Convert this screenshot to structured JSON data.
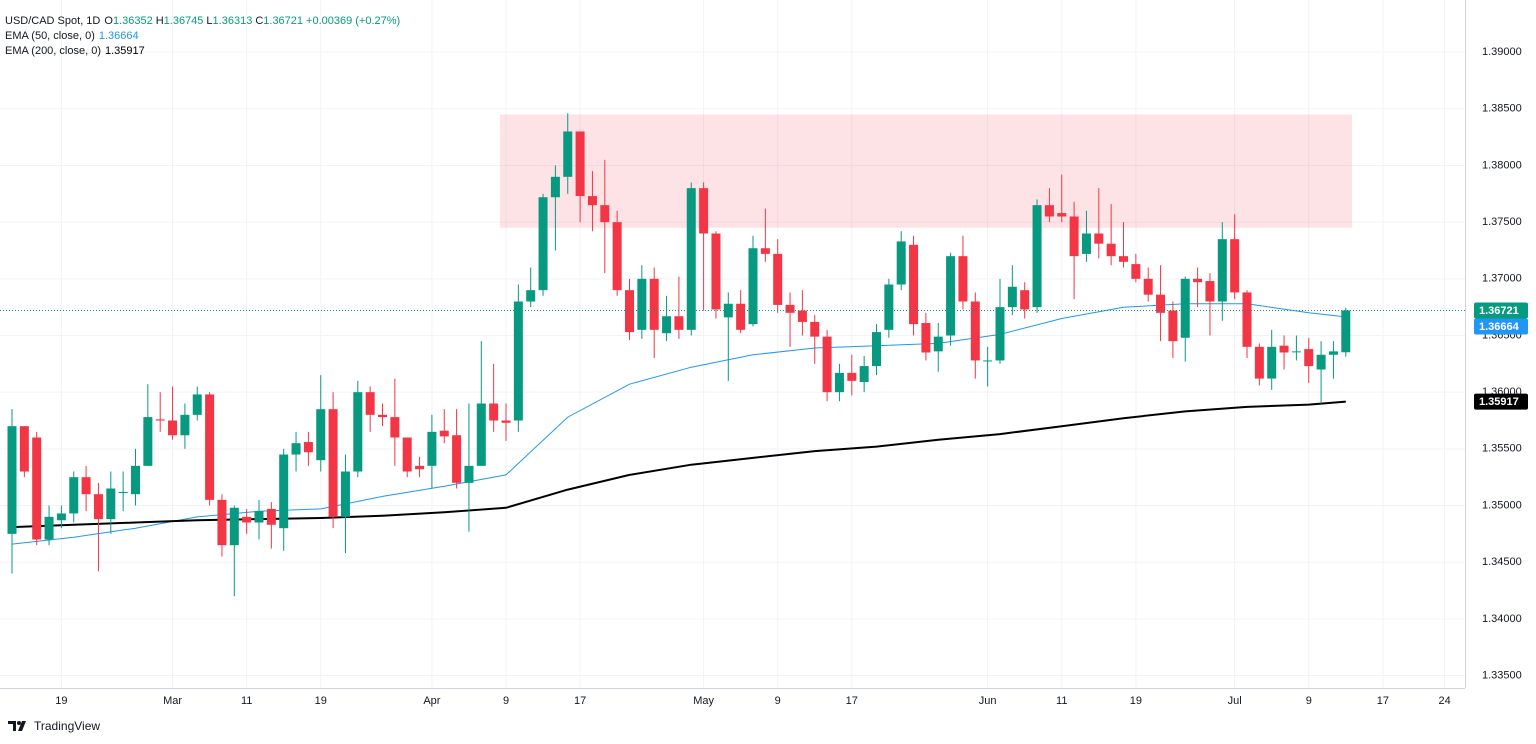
{
  "title": "USD/CAD Spot, 1D",
  "ohlc_prefixes": [
    "O",
    "H",
    "L",
    "C"
  ],
  "change": "+0.00369 (+0.27%)",
  "brand": "TradingView",
  "chart_data": {
    "type": "candlestick",
    "categories": [
      null,
      null,
      null,
      null,
      "19",
      null,
      null,
      null,
      null,
      null,
      null,
      null,
      null,
      "Mar",
      null,
      null,
      null,
      null,
      null,
      "11",
      null,
      null,
      null,
      null,
      null,
      "19",
      null,
      null,
      null,
      null,
      null,
      null,
      null,
      null,
      "Apr",
      null,
      null,
      null,
      null,
      null,
      "9",
      null,
      null,
      null,
      null,
      null,
      "17",
      null,
      null,
      null,
      null,
      null,
      null,
      null,
      null,
      null,
      "May",
      null,
      null,
      null,
      null,
      null,
      "9",
      null,
      null,
      null,
      null,
      null,
      "17",
      null,
      null,
      null,
      null,
      null,
      null,
      null,
      null,
      null,
      null,
      "Jun",
      null,
      null,
      null,
      null,
      null,
      "11",
      null,
      null,
      null,
      null,
      null,
      "19",
      null,
      null,
      null,
      null,
      null,
      null,
      null,
      "Jul",
      null,
      null,
      null,
      null,
      null,
      "9",
      null,
      null,
      null,
      null,
      null,
      "17",
      null,
      null,
      null,
      null,
      "24"
    ],
    "ohlc": [
      [
        1.3475,
        1.3585,
        1.344,
        1.357
      ],
      [
        1.357,
        1.357,
        1.3525,
        1.353
      ],
      [
        1.356,
        1.3565,
        1.3465,
        1.347
      ],
      [
        1.347,
        1.35,
        1.3465,
        1.349
      ],
      [
        1.3487,
        1.35,
        1.348,
        1.3493
      ],
      [
        1.3493,
        1.353,
        1.3485,
        1.3525
      ],
      [
        1.3525,
        1.3535,
        1.3495,
        1.351
      ],
      [
        1.351,
        1.352,
        1.3442,
        1.3488
      ],
      [
        1.3488,
        1.353,
        1.3475,
        1.3515
      ],
      [
        1.3511,
        1.353,
        1.3495,
        1.3512
      ],
      [
        1.351,
        1.355,
        1.35,
        1.3535
      ],
      [
        1.3535,
        1.3607,
        1.3535,
        1.3578
      ],
      [
        1.3576,
        1.36,
        1.3565,
        1.3575
      ],
      [
        1.3575,
        1.3605,
        1.3558,
        1.3562
      ],
      [
        1.3562,
        1.359,
        1.355,
        1.358
      ],
      [
        1.358,
        1.3605,
        1.3575,
        1.3598
      ],
      [
        1.3598,
        1.36,
        1.35,
        1.3505
      ],
      [
        1.3505,
        1.351,
        1.3455,
        1.3465
      ],
      [
        1.3465,
        1.35,
        1.342,
        1.3498
      ],
      [
        1.349,
        1.3497,
        1.3475,
        1.3485
      ],
      [
        1.3485,
        1.3505,
        1.347,
        1.3495
      ],
      [
        1.3497,
        1.3503,
        1.3462,
        1.3483
      ],
      [
        1.348,
        1.355,
        1.346,
        1.3545
      ],
      [
        1.3545,
        1.3565,
        1.353,
        1.3555
      ],
      [
        1.3556,
        1.3565,
        1.3535,
        1.3547
      ],
      [
        1.354,
        1.3615,
        1.353,
        1.3585
      ],
      [
        1.3585,
        1.36,
        1.348,
        1.349
      ],
      [
        1.349,
        1.3545,
        1.3458,
        1.353
      ],
      [
        1.353,
        1.361,
        1.3525,
        1.36
      ],
      [
        1.36,
        1.3605,
        1.3565,
        1.358
      ],
      [
        1.358,
        1.359,
        1.357,
        1.3578
      ],
      [
        1.3578,
        1.3612,
        1.3535,
        1.356
      ],
      [
        1.356,
        1.356,
        1.3525,
        1.353
      ],
      [
        1.3535,
        1.3543,
        1.3525,
        1.3532
      ],
      [
        1.3535,
        1.358,
        1.3515,
        1.3565
      ],
      [
        1.3566,
        1.3585,
        1.3555,
        1.3561
      ],
      [
        1.3562,
        1.3585,
        1.3515,
        1.352
      ],
      [
        1.352,
        1.359,
        1.3477,
        1.3535
      ],
      [
        1.3535,
        1.3645,
        1.3535,
        1.359
      ],
      [
        1.359,
        1.3625,
        1.3565,
        1.3575
      ],
      [
        1.3575,
        1.359,
        1.3557,
        1.3573
      ],
      [
        1.3575,
        1.3695,
        1.3565,
        1.368
      ],
      [
        1.368,
        1.371,
        1.3675,
        1.369
      ],
      [
        1.369,
        1.3775,
        1.3685,
        1.3772
      ],
      [
        1.3772,
        1.38,
        1.3725,
        1.379
      ],
      [
        1.379,
        1.3846,
        1.3775,
        1.383
      ],
      [
        1.383,
        1.383,
        1.375,
        1.3773
      ],
      [
        1.3773,
        1.3795,
        1.3742,
        1.3765
      ],
      [
        1.3765,
        1.3805,
        1.3705,
        1.375
      ],
      [
        1.375,
        1.376,
        1.3685,
        1.369
      ],
      [
        1.369,
        1.37,
        1.3646,
        1.3653
      ],
      [
        1.3655,
        1.3712,
        1.3647,
        1.37
      ],
      [
        1.37,
        1.371,
        1.363,
        1.3655
      ],
      [
        1.3652,
        1.3685,
        1.3645,
        1.3667
      ],
      [
        1.3667,
        1.3702,
        1.3647,
        1.3655
      ],
      [
        1.3655,
        1.3785,
        1.365,
        1.378
      ],
      [
        1.378,
        1.3785,
        1.3672,
        1.374
      ],
      [
        1.374,
        1.3742,
        1.3665,
        1.3673
      ],
      [
        1.3666,
        1.3688,
        1.361,
        1.3678
      ],
      [
        1.3678,
        1.369,
        1.3652,
        1.3655
      ],
      [
        1.366,
        1.3738,
        1.3658,
        1.3727
      ],
      [
        1.3727,
        1.3762,
        1.3715,
        1.3722
      ],
      [
        1.3722,
        1.3735,
        1.367,
        1.3677
      ],
      [
        1.3677,
        1.3688,
        1.364,
        1.367
      ],
      [
        1.3672,
        1.369,
        1.365,
        1.3662
      ],
      [
        1.3662,
        1.3668,
        1.3625,
        1.3649
      ],
      [
        1.3649,
        1.3655,
        1.3592,
        1.36
      ],
      [
        1.36,
        1.3625,
        1.3592,
        1.3617
      ],
      [
        1.3617,
        1.3633,
        1.3597,
        1.361
      ],
      [
        1.3609,
        1.3632,
        1.36,
        1.3623
      ],
      [
        1.3623,
        1.366,
        1.3615,
        1.3653
      ],
      [
        1.3655,
        1.37,
        1.3648,
        1.3695
      ],
      [
        1.3695,
        1.3742,
        1.369,
        1.3733
      ],
      [
        1.373,
        1.3738,
        1.365,
        1.366
      ],
      [
        1.3661,
        1.367,
        1.3628,
        1.3635
      ],
      [
        1.3636,
        1.3661,
        1.3618,
        1.3649
      ],
      [
        1.365,
        1.3723,
        1.3641,
        1.372
      ],
      [
        1.372,
        1.3738,
        1.3673,
        1.368
      ],
      [
        1.368,
        1.3688,
        1.3612,
        1.3628
      ],
      [
        1.3628,
        1.364,
        1.3605,
        1.3628
      ],
      [
        1.3628,
        1.37,
        1.3625,
        1.3675
      ],
      [
        1.3675,
        1.3712,
        1.3668,
        1.3693
      ],
      [
        1.369,
        1.3697,
        1.3665,
        1.3673
      ],
      [
        1.3675,
        1.377,
        1.367,
        1.3765
      ],
      [
        1.3765,
        1.378,
        1.375,
        1.3755
      ],
      [
        1.3758,
        1.3792,
        1.375,
        1.3755
      ],
      [
        1.3755,
        1.3768,
        1.3682,
        1.372
      ],
      [
        1.3722,
        1.376,
        1.3715,
        1.374
      ],
      [
        1.374,
        1.378,
        1.3718,
        1.3731
      ],
      [
        1.3731,
        1.3766,
        1.3712,
        1.372
      ],
      [
        1.372,
        1.375,
        1.371,
        1.3715
      ],
      [
        1.3713,
        1.3722,
        1.3697,
        1.37
      ],
      [
        1.37,
        1.371,
        1.368,
        1.3686
      ],
      [
        1.3686,
        1.3712,
        1.3645,
        1.367
      ],
      [
        1.3672,
        1.368,
        1.363,
        1.3645
      ],
      [
        1.3648,
        1.3702,
        1.3627,
        1.37
      ],
      [
        1.37,
        1.371,
        1.3675,
        1.3697
      ],
      [
        1.3698,
        1.3705,
        1.365,
        1.368
      ],
      [
        1.368,
        1.375,
        1.3663,
        1.3735
      ],
      [
        1.3735,
        1.3757,
        1.3682,
        1.3688
      ],
      [
        1.3688,
        1.369,
        1.363,
        1.364
      ],
      [
        1.364,
        1.3643,
        1.3606,
        1.3612
      ],
      [
        1.3612,
        1.3655,
        1.3602,
        1.364
      ],
      [
        1.3641,
        1.365,
        1.362,
        1.3635
      ],
      [
        1.3636,
        1.365,
        1.3628,
        1.3636
      ],
      [
        1.3638,
        1.3648,
        1.3608,
        1.3623
      ],
      [
        1.362,
        1.3645,
        1.359,
        1.3633
      ],
      [
        1.3633,
        1.3645,
        1.3612,
        1.3636
      ],
      [
        1.36352,
        1.36745,
        1.36313,
        1.36721
      ],
      null,
      null,
      null,
      null,
      null,
      null,
      null,
      null
    ],
    "up_color": "#089981",
    "down_color": "#f23645",
    "lines": [
      {
        "name": "EMA (50, close, 0)",
        "color": "#2196f3",
        "x": [
          0,
          5,
          10,
          15,
          20,
          25,
          30,
          35,
          40,
          45,
          50,
          55,
          60,
          65,
          70,
          75,
          80,
          85,
          90,
          95,
          100,
          105,
          108
        ],
        "values": [
          1.3466,
          1.3472,
          1.348,
          1.349,
          1.3495,
          1.3497,
          1.3508,
          1.3517,
          1.3527,
          1.3578,
          1.3607,
          1.3622,
          1.3633,
          1.3639,
          1.3641,
          1.3643,
          1.3651,
          1.3665,
          1.3675,
          1.3678,
          1.3678,
          1.367,
          1.36664
        ]
      },
      {
        "name": "EMA (200, close, 0)",
        "color": "#000000",
        "x": [
          0,
          5,
          10,
          15,
          20,
          25,
          30,
          35,
          40,
          45,
          50,
          55,
          60,
          65,
          70,
          75,
          80,
          85,
          90,
          95,
          100,
          105,
          108
        ],
        "values": [
          1.3481,
          1.3483,
          1.3485,
          1.3487,
          1.3488,
          1.3489,
          1.3491,
          1.3494,
          1.3498,
          1.3514,
          1.3527,
          1.3536,
          1.3542,
          1.3548,
          1.3552,
          1.3558,
          1.3563,
          1.357,
          1.3577,
          1.3583,
          1.3587,
          1.3589,
          1.35917
        ]
      }
    ],
    "zone": {
      "x": [
        40,
        108
      ],
      "y": [
        1.3745,
        1.3845
      ],
      "color": "#f23645"
    },
    "ylim": [
      1.3339,
      1.3946
    ],
    "yticks": [
      {
        "value": 1.335,
        "label": "1.33500"
      },
      {
        "value": 1.34,
        "label": "1.34000"
      },
      {
        "value": 1.345,
        "label": "1.34500"
      },
      {
        "value": 1.35,
        "label": "1.35000"
      },
      {
        "value": 1.355,
        "label": "1.35500"
      },
      {
        "value": 1.36,
        "label": "1.36000"
      },
      {
        "value": 1.365,
        "label": "1.36500"
      },
      {
        "value": 1.37,
        "label": "1.37000"
      },
      {
        "value": 1.375,
        "label": "1.37500"
      },
      {
        "value": 1.38,
        "label": "1.38000"
      },
      {
        "value": 1.385,
        "label": "1.38500"
      },
      {
        "value": 1.39,
        "label": "1.39000"
      }
    ],
    "grid": true
  }
}
